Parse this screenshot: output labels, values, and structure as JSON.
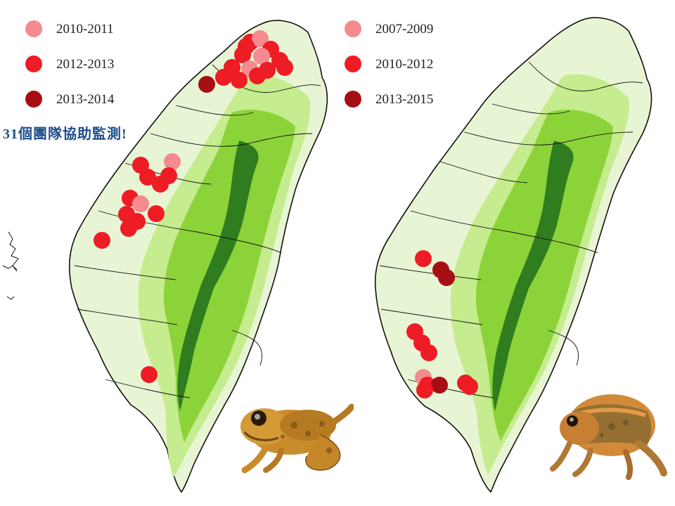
{
  "left_map": {
    "legend": [
      {
        "label": "2010-2011",
        "color": "#f58a8f"
      },
      {
        "label": "2012-2013",
        "color": "#ee1c24"
      },
      {
        "label": "2013-2014",
        "color": "#a50f14"
      }
    ],
    "caption": "31個團隊協助監測!",
    "points": [
      {
        "x": 356,
        "y": 60,
        "period": 1
      },
      {
        "x": 370,
        "y": 55,
        "period": 0
      },
      {
        "x": 385,
        "y": 70,
        "period": 1
      },
      {
        "x": 345,
        "y": 78,
        "period": 1
      },
      {
        "x": 372,
        "y": 80,
        "period": 0
      },
      {
        "x": 398,
        "y": 86,
        "period": 1
      },
      {
        "x": 330,
        "y": 96,
        "period": 1
      },
      {
        "x": 355,
        "y": 98,
        "period": 0
      },
      {
        "x": 380,
        "y": 100,
        "period": 1
      },
      {
        "x": 318,
        "y": 110,
        "period": 1
      },
      {
        "x": 340,
        "y": 114,
        "period": 1
      },
      {
        "x": 405,
        "y": 96,
        "period": 1
      },
      {
        "x": 294,
        "y": 120,
        "period": 2
      },
      {
        "x": 366,
        "y": 108,
        "period": 1
      },
      {
        "x": 350,
        "y": 66,
        "period": 1
      },
      {
        "x": 200,
        "y": 235,
        "period": 1
      },
      {
        "x": 210,
        "y": 252,
        "period": 1
      },
      {
        "x": 245,
        "y": 230,
        "period": 0
      },
      {
        "x": 240,
        "y": 250,
        "period": 1
      },
      {
        "x": 228,
        "y": 262,
        "period": 1
      },
      {
        "x": 185,
        "y": 282,
        "period": 1
      },
      {
        "x": 200,
        "y": 290,
        "period": 0
      },
      {
        "x": 180,
        "y": 305,
        "period": 1
      },
      {
        "x": 195,
        "y": 315,
        "period": 1
      },
      {
        "x": 222,
        "y": 304,
        "period": 1
      },
      {
        "x": 183,
        "y": 325,
        "period": 1
      },
      {
        "x": 145,
        "y": 342,
        "period": 1
      },
      {
        "x": 212,
        "y": 533,
        "period": 1
      }
    ]
  },
  "right_map": {
    "legend": [
      {
        "label": "2007-2009",
        "color": "#f58a8f"
      },
      {
        "label": "2010-2012",
        "color": "#ee1c24"
      },
      {
        "label": "2013-2015",
        "color": "#a50f14"
      }
    ],
    "points": [
      {
        "x": 602,
        "y": 368,
        "period": 1
      },
      {
        "x": 627,
        "y": 384,
        "period": 2
      },
      {
        "x": 635,
        "y": 395,
        "period": 2
      },
      {
        "x": 590,
        "y": 472,
        "period": 1
      },
      {
        "x": 600,
        "y": 488,
        "period": 1
      },
      {
        "x": 610,
        "y": 502,
        "period": 1
      },
      {
        "x": 602,
        "y": 537,
        "period": 0
      },
      {
        "x": 608,
        "y": 548,
        "period": 1
      },
      {
        "x": 625,
        "y": 548,
        "period": 2
      },
      {
        "x": 604,
        "y": 555,
        "period": 1
      },
      {
        "x": 662,
        "y": 545,
        "period": 1
      },
      {
        "x": 668,
        "y": 550,
        "period": 1
      }
    ]
  },
  "colors": {
    "island_fill": "#e8f5d4",
    "low_mountain": "#c5ec8e",
    "mid_mountain": "#8cd33a",
    "high_mountain": "#2f7d1e",
    "boundary": "#111111"
  },
  "images": {
    "left_frog": "brown-spotted tree frog (orange-brown)",
    "right_frog": "orange striped frog"
  }
}
